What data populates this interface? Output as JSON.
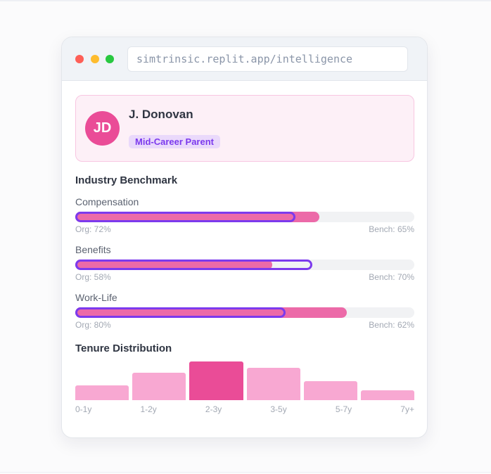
{
  "browser": {
    "url": "simtrinsic.replit.app/intelligence",
    "dots": [
      "#fe5f57",
      "#febc2e",
      "#28c840"
    ]
  },
  "profile": {
    "initials": "JD",
    "name": "J. Donovan",
    "segment": "Mid-Career Parent"
  },
  "benchmark": {
    "title": "Industry Benchmark",
    "metrics": [
      {
        "label": "Compensation",
        "org": 72,
        "bench": 65,
        "org_text": "Org: 72%",
        "bench_text": "Bench: 65%"
      },
      {
        "label": "Benefits",
        "org": 58,
        "bench": 70,
        "org_text": "Org: 58%",
        "bench_text": "Bench: 70%"
      },
      {
        "label": "Work-Life",
        "org": 80,
        "bench": 62,
        "org_text": "Org: 80%",
        "bench_text": "Bench: 62%"
      }
    ]
  },
  "chart_data": {
    "type": "bar",
    "title": "Tenure Distribution",
    "categories": [
      "0-1y",
      "1-2y",
      "2-3y",
      "3-5y",
      "5-7y",
      "7y+"
    ],
    "values": [
      38,
      71,
      100,
      84,
      49,
      25
    ],
    "highlight": "2-3y",
    "colors": {
      "bar": "#f8a8d2",
      "highlight": "#ea4c97"
    }
  }
}
